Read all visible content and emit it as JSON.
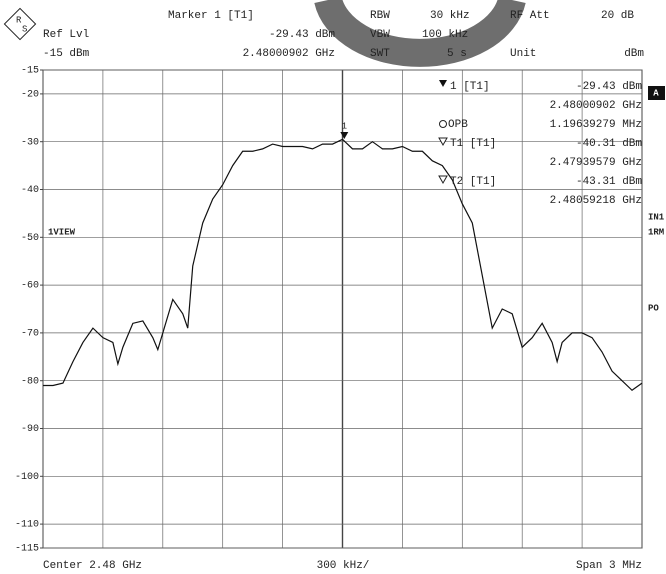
{
  "header": {
    "logo": [
      "R",
      "S"
    ],
    "marker_title": "Marker 1 [T1]",
    "marker_level": "-29.43 dBm",
    "marker_freq": "2.48000902 GHz",
    "ref_label": "Ref Lvl",
    "ref_value": "-15 dBm",
    "rbw_label": "RBW",
    "rbw_value": "30 kHz",
    "vbw_label": "VBW",
    "vbw_value": "100 kHz",
    "swt_label": "SWT",
    "swt_value": "5 s",
    "att_label": "RF Att",
    "att_value": "20 dB",
    "unit_label": "Unit",
    "unit_value": "dBm"
  },
  "panel": {
    "m1": "1 [T1]",
    "m1_level": "-29.43 dBm",
    "m1_freq": "2.48000902 GHz",
    "obw": "OPB",
    "obw_value": "1.19639279 MHz",
    "t1": "T1 [T1]",
    "t1_level": "-40.31 dBm",
    "t1_freq": "2.47939579 GHz",
    "t2": "T2 [T1]",
    "t2_level": "-43.31 dBm",
    "t2_freq": "2.48059218 GHz"
  },
  "side": {
    "a": "A",
    "in": "IN1",
    "rm": "1RM",
    "po": "PO"
  },
  "footer": {
    "center": "Center 2.48 GHz",
    "div": "300 kHz/",
    "span": "Span 3 MHz"
  },
  "chart_data": {
    "type": "line",
    "trace_label": "1VIEW",
    "xlim": [
      2478.5,
      2481.5
    ],
    "ylim": [
      -115,
      -15
    ],
    "yticks": [
      -15,
      -20,
      -30,
      -40,
      -50,
      -60,
      -70,
      -80,
      -90,
      -100,
      -110,
      -115
    ],
    "grid": true,
    "marker": {
      "label": "1",
      "x": 2480.00902,
      "y": -29.43
    },
    "x": [
      2478.5,
      2478.55,
      2478.6,
      2478.65,
      2478.7,
      2478.75,
      2478.8,
      2478.85,
      2478.875,
      2478.9,
      2478.95,
      2479.0,
      2479.05,
      2479.075,
      2479.1,
      2479.15,
      2479.2,
      2479.225,
      2479.25,
      2479.3,
      2479.35,
      2479.4,
      2479.45,
      2479.5,
      2479.55,
      2479.6,
      2479.65,
      2479.7,
      2479.75,
      2479.8,
      2479.85,
      2479.9,
      2479.95,
      2480.0,
      2480.05,
      2480.1,
      2480.15,
      2480.2,
      2480.25,
      2480.3,
      2480.35,
      2480.4,
      2480.45,
      2480.5,
      2480.55,
      2480.6,
      2480.65,
      2480.7,
      2480.75,
      2480.8,
      2480.85,
      2480.9,
      2480.95,
      2481.0,
      2481.05,
      2481.075,
      2481.1,
      2481.15,
      2481.2,
      2481.25,
      2481.3,
      2481.35,
      2481.4,
      2481.45,
      2481.5
    ],
    "series": [
      {
        "color": "#111",
        "values": [
          -81,
          -81,
          -80.5,
          -76,
          -72,
          -69,
          -71,
          -72,
          -76.5,
          -73,
          -68,
          -67.5,
          -71,
          -73.5,
          -70,
          -63,
          -66,
          -69,
          -56,
          -47,
          -42,
          -39,
          -35,
          -32,
          -32,
          -31.5,
          -30.5,
          -31,
          -31,
          -31,
          -31.5,
          -30.5,
          -30.5,
          -29.5,
          -31.5,
          -31.5,
          -30,
          -31.5,
          -31.5,
          -31,
          -32,
          -32,
          -34,
          -35,
          -38,
          -43,
          -47,
          -58,
          -69,
          -65,
          -66,
          -73,
          -71,
          -68,
          -72,
          -76,
          -72,
          -70,
          -70,
          -71,
          -74,
          -78,
          -80,
          -82,
          -80.5
        ]
      }
    ]
  }
}
